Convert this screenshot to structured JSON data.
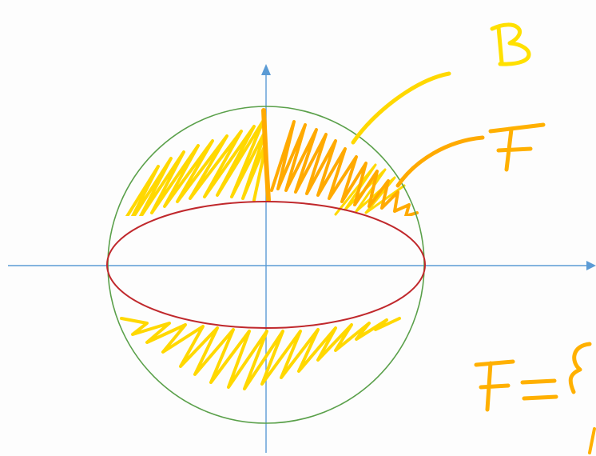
{
  "diagram": {
    "labels": {
      "b": "B",
      "f": "F",
      "formula": "F="
    },
    "colors": {
      "background": "#fdfdfd",
      "axis": "#5b9bd5",
      "sphere_outline": "#5aa04a",
      "equator": "#c0282c",
      "hatch_b": "#ffd800",
      "hatch_f": "#ffaa00",
      "label_b": "#ffe000",
      "label_f": "#ffb000"
    }
  }
}
